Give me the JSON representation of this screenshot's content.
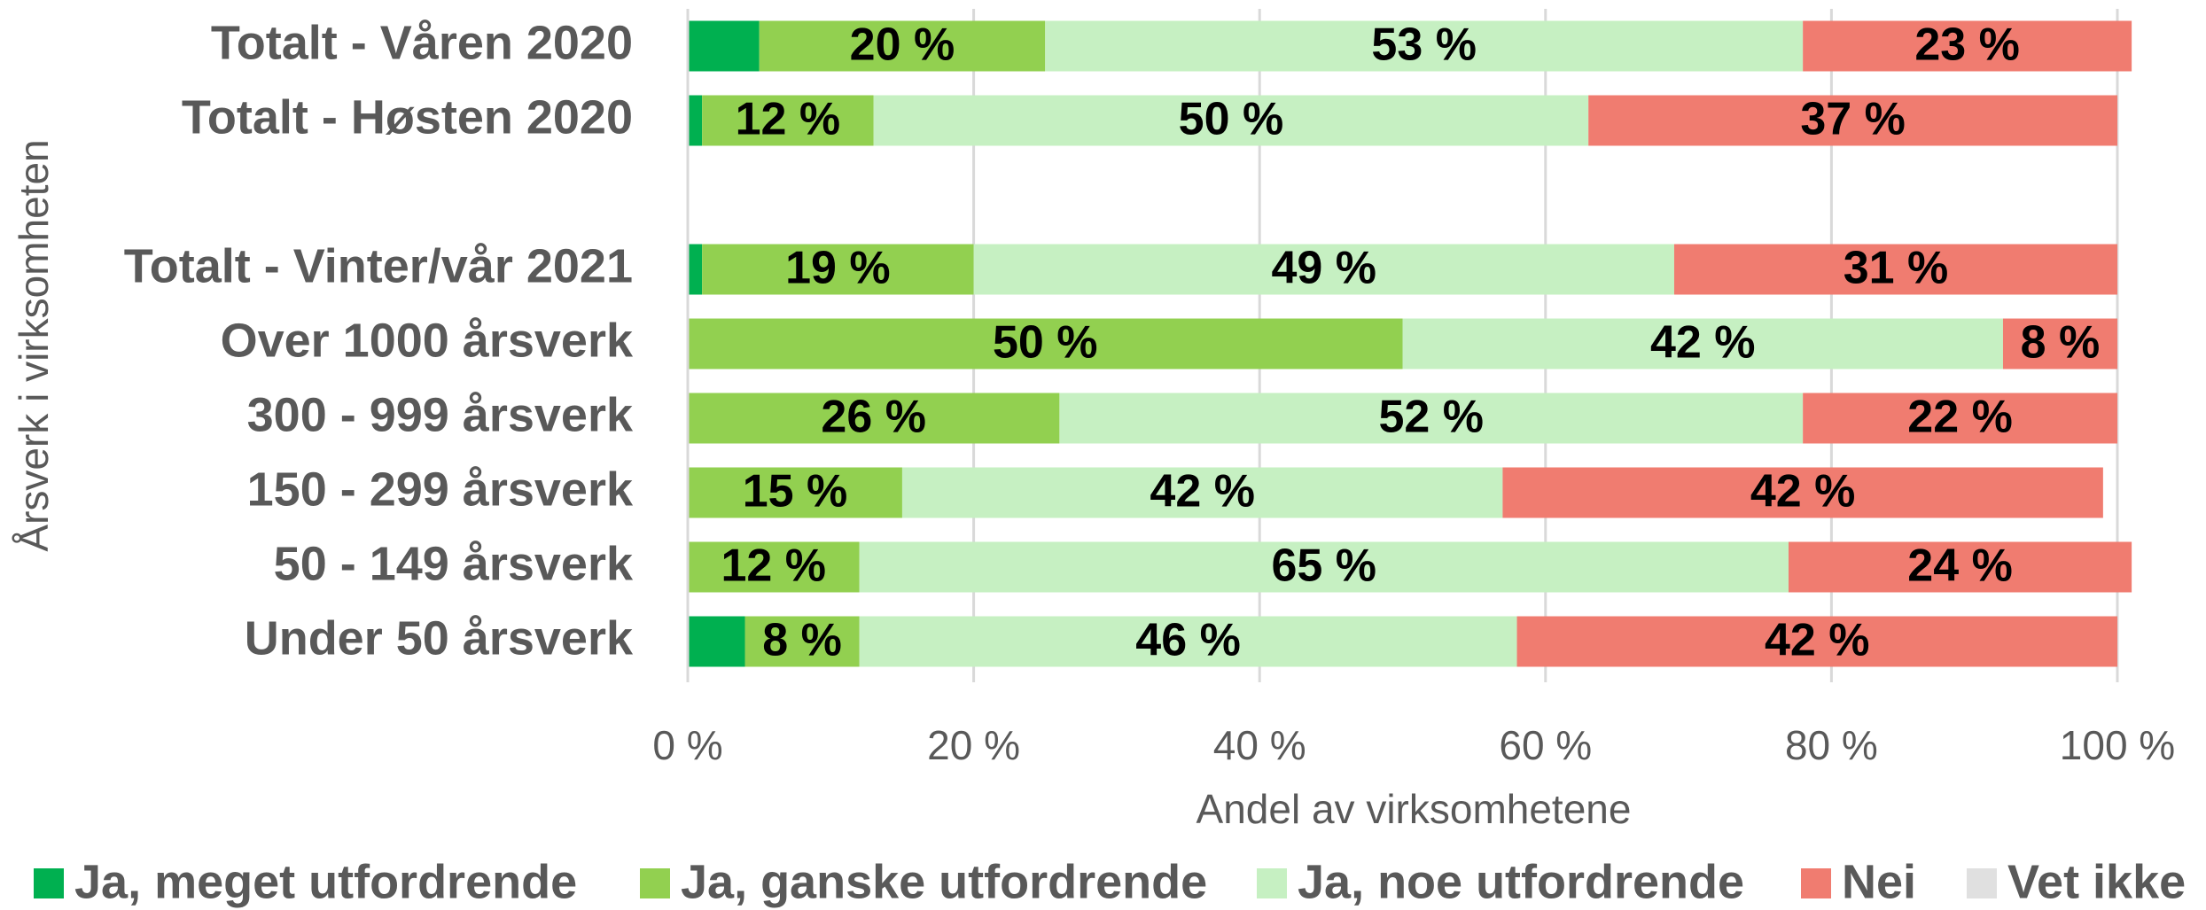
{
  "chart_data": {
    "type": "stacked-bar-horizontal",
    "xlabel": "Andel av virksomhetene",
    "ylabel": "Årsverk i virksomheten",
    "categories": [
      "Totalt - Våren 2020",
      "Totalt - Høsten 2020",
      null,
      "Totalt - Vinter/vår 2021",
      "Over 1000 årsverk",
      "300 - 999 årsverk",
      "150 - 299 årsverk",
      "50 - 149 årsverk",
      "Under 50 årsverk"
    ],
    "series": [
      {
        "name": "Ja, meget utfordrende",
        "color": "#00b050",
        "values": [
          5,
          1,
          null,
          1,
          0,
          0,
          0,
          0,
          4
        ],
        "value_labels": [
          null,
          null,
          null,
          null,
          null,
          null,
          null,
          null,
          null
        ]
      },
      {
        "name": "Ja, ganske utfordrende",
        "color": "#92d050",
        "values": [
          20,
          12,
          null,
          19,
          50,
          26,
          15,
          12,
          8
        ],
        "value_labels": [
          "20 %",
          "12 %",
          null,
          "19 %",
          "50 %",
          "26 %",
          "15 %",
          "12 %",
          "8 %"
        ]
      },
      {
        "name": "Ja, noe utfordrende",
        "color": "#c6f0c2",
        "values": [
          53,
          50,
          null,
          49,
          42,
          52,
          42,
          65,
          46
        ],
        "value_labels": [
          "53 %",
          "50 %",
          null,
          "49 %",
          "42 %",
          "52 %",
          "42 %",
          "65 %",
          "46 %"
        ]
      },
      {
        "name": "Nei",
        "color": "#f07c70",
        "values": [
          23,
          37,
          null,
          31,
          8,
          22,
          42,
          24,
          42
        ],
        "value_labels": [
          "23 %",
          "37 %",
          null,
          "31 %",
          "8 %",
          "22 %",
          "42 %",
          "24 %",
          "42 %"
        ]
      },
      {
        "name": "Vet ikke",
        "color": "#e0e0e0",
        "values": [
          0,
          0,
          null,
          0,
          0,
          0,
          0,
          0,
          0
        ],
        "value_labels": [
          null,
          null,
          null,
          null,
          null,
          null,
          null,
          null,
          null
        ]
      }
    ],
    "xlim": [
      0,
      100
    ],
    "xticks": [
      {
        "value": 0,
        "label": "0 %"
      },
      {
        "value": 20,
        "label": "20 %"
      },
      {
        "value": 40,
        "label": "40 %"
      },
      {
        "value": 60,
        "label": "60 %"
      },
      {
        "value": 80,
        "label": "80 %"
      },
      {
        "value": 100,
        "label": "100 %"
      }
    ],
    "grid": true,
    "legend": "bottom"
  }
}
